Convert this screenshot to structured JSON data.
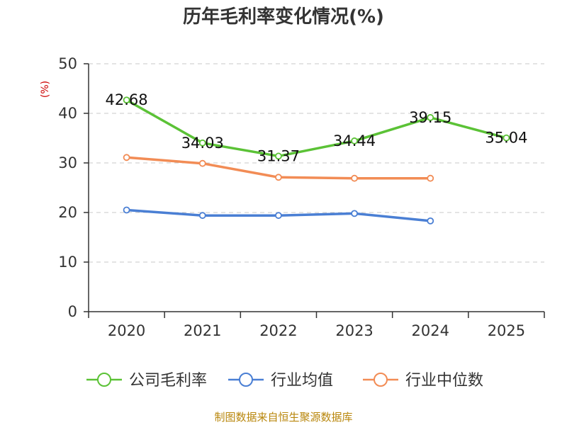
{
  "chart_data": {
    "type": "line",
    "title": "历年毛利率变化情况(%)",
    "ylabel": "(%)",
    "xlabel": "",
    "categories": [
      "2020",
      "2021",
      "2022",
      "2023",
      "2024",
      "2025"
    ],
    "ylim": [
      0,
      50
    ],
    "yticks": [
      0,
      10,
      20,
      30,
      40,
      50
    ],
    "grid": true,
    "legend_position": "bottom",
    "series": [
      {
        "name": "公司毛利率",
        "color": "#5bc236",
        "values": [
          42.68,
          34.03,
          31.37,
          34.44,
          39.15,
          35.04
        ],
        "labels": [
          "42.68",
          "34.03",
          "31.37",
          "34.44",
          "39.15",
          "35.04"
        ]
      },
      {
        "name": "行业均值",
        "color": "#4a7fd4",
        "values": [
          20.5,
          19.4,
          19.4,
          19.8,
          18.3,
          null
        ]
      },
      {
        "name": "行业中位数",
        "color": "#f28c55",
        "values": [
          31.1,
          29.9,
          27.1,
          26.9,
          26.9,
          null
        ]
      }
    ],
    "source": "制图数据来自恒生聚源数据库"
  }
}
